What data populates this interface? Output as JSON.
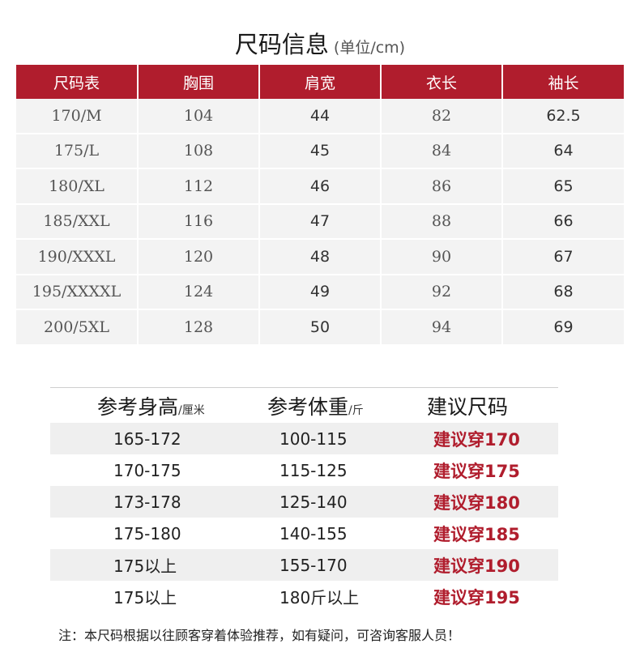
{
  "title": {
    "main": "尺码信息",
    "unit": "(单位/cm)"
  },
  "size_table": {
    "headers": [
      "尺码表",
      "胸围",
      "肩宽",
      "衣长",
      "袖长"
    ],
    "rows": [
      [
        "170/M",
        "104",
        "44",
        "82",
        "62.5"
      ],
      [
        "175/L",
        "108",
        "45",
        "84",
        "64"
      ],
      [
        "180/XL",
        "112",
        "46",
        "86",
        "65"
      ],
      [
        "185/XXL",
        "116",
        "47",
        "88",
        "66"
      ],
      [
        "190/XXXL",
        "120",
        "48",
        "90",
        "67"
      ],
      [
        "195/XXXXL",
        "124",
        "49",
        "92",
        "68"
      ],
      [
        "200/5XL",
        "128",
        "50",
        "94",
        "69"
      ]
    ]
  },
  "recommendation": {
    "headers": {
      "height": "参考身高",
      "height_unit": "/厘米",
      "weight": "参考体重",
      "weight_unit": "/斤",
      "size": "建议尺码"
    },
    "rows": [
      {
        "height": "165-172",
        "weight": "100-115",
        "size": "建议穿170"
      },
      {
        "height": "170-175",
        "weight": "115-125",
        "size": "建议穿175"
      },
      {
        "height": "173-178",
        "weight": "125-140",
        "size": "建议穿180"
      },
      {
        "height": "175-180",
        "weight": "140-155",
        "size": "建议穿185"
      },
      {
        "height": "175以上",
        "weight": "155-170",
        "size": "建议穿190"
      },
      {
        "height": "175以上",
        "weight": "180斤以上",
        "size": "建议穿195"
      }
    ]
  },
  "note": "注：本尺码根据以往顾客穿着体验推荐，如有疑问，可咨询客服人员！",
  "colors": {
    "accent": "#b01d2d",
    "row_bg": "#f3f3f3"
  }
}
